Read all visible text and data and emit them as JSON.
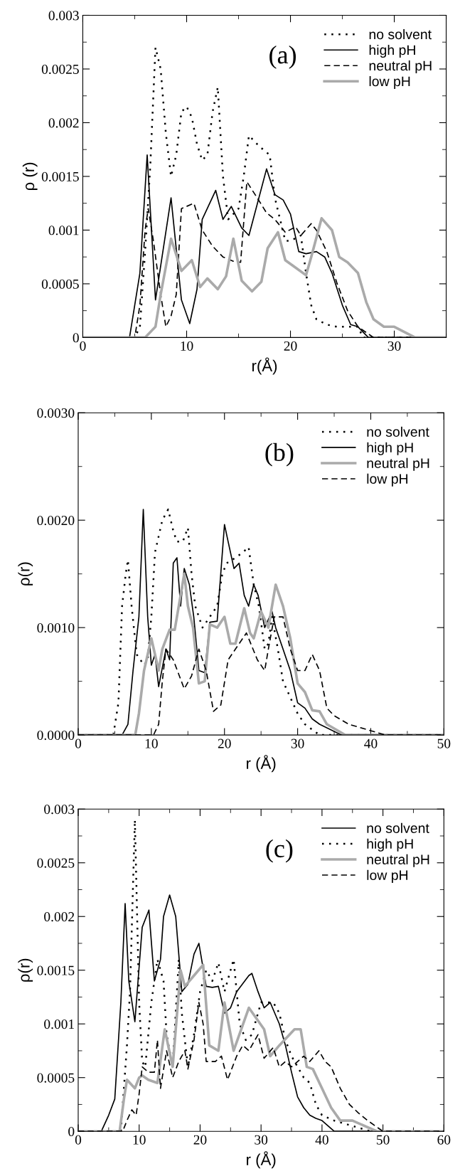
{
  "chart_data": [
    {
      "type": "line",
      "annotations": [
        "(a)"
      ],
      "xlabel": "r(Å)",
      "ylabel": "ρ (r)",
      "xlim": [
        0,
        35
      ],
      "ylim": [
        0,
        0.003
      ],
      "xticks": [
        0,
        10,
        20,
        30
      ],
      "yticks": [
        0,
        0.0005,
        0.001,
        0.0015,
        0.002,
        0.0025,
        0.003
      ],
      "legend": "top right",
      "grid": false,
      "marker": "none",
      "series": [
        {
          "name": "no solvent",
          "color": "#000000",
          "line_style": "dotted",
          "x": [
            0,
            5,
            5.5,
            6,
            6.5,
            7,
            7.5,
            8,
            8.5,
            9,
            9.5,
            10,
            10.5,
            11,
            11.5,
            12,
            12.5,
            13,
            13.5,
            14,
            15,
            15.5,
            16,
            17,
            18,
            18.5,
            19,
            19.5,
            20,
            21,
            21.5,
            22,
            22.5,
            23.5,
            24.5,
            25.5,
            26.5,
            27,
            28,
            35
          ],
          "values": [
            0,
            0,
            0.0001,
            0.0008,
            0.0016,
            0.0027,
            0.0025,
            0.0019,
            0.0015,
            0.0017,
            0.0021,
            0.00215,
            0.00205,
            0.0018,
            0.00165,
            0.0017,
            0.0021,
            0.00233,
            0.0015,
            0.0011,
            0.0012,
            0.0015,
            0.00188,
            0.00178,
            0.0017,
            0.0013,
            0.0011,
            0.0009,
            0.0009,
            0.00095,
            0.0006,
            0.0003,
            0.00017,
            0.00012,
            0.0001,
            0.0001,
            0.0001,
            0,
            0,
            0
          ]
        },
        {
          "name": "high pH",
          "color": "#000000",
          "line_style": "solid",
          "x": [
            0,
            4.5,
            5,
            5.5,
            6.2,
            7,
            8.5,
            9.5,
            10.3,
            11,
            11.5,
            12.8,
            13.5,
            14.3,
            15.3,
            16,
            17.7,
            18.5,
            19.3,
            20,
            20.8,
            21.5,
            22.5,
            23.3,
            24,
            25,
            25.8,
            26.5,
            27.5,
            35
          ],
          "values": [
            0,
            0,
            0.0003,
            0.0006,
            0.0017,
            0.00035,
            0.0013,
            0.00035,
            0.00013,
            0.00045,
            0.0011,
            0.00137,
            0.0011,
            0.00122,
            0.00102,
            0.00095,
            0.00157,
            0.00133,
            0.00128,
            0.00115,
            0.0008,
            0.00078,
            0.0008,
            0.00075,
            0.0006,
            0.0003,
            0.00012,
            0.0001,
            0,
            0
          ]
        },
        {
          "name": "neutral pH",
          "color": "#000000",
          "line_style": "dashed",
          "x": [
            0,
            5,
            5.5,
            6,
            6.3,
            6.8,
            7.5,
            8,
            8.5,
            9,
            9.5,
            10.7,
            11.5,
            12.5,
            13.5,
            14.5,
            15.2,
            15.8,
            16.8,
            17.7,
            18.5,
            19.5,
            20.5,
            21,
            22,
            22.5,
            23.5,
            24.5,
            25.5,
            26.5,
            28,
            30,
            35
          ],
          "values": [
            0,
            0,
            0.0003,
            0.001,
            0.0012,
            0.0009,
            0.0004,
            0.0001,
            0.0002,
            0.0004,
            0.0012,
            0.00125,
            0.001,
            0.00085,
            0.00075,
            0.00071,
            0.0007,
            0.00145,
            0.0013,
            0.00116,
            0.0011,
            0.00098,
            0.00103,
            0.00095,
            0.00106,
            0.001,
            0.0008,
            0.0005,
            0.00025,
            0.0001,
            0,
            0,
            0
          ]
        },
        {
          "name": "low pH",
          "color": "#aaaaaa",
          "line_style": "solid",
          "x": [
            0,
            6,
            7,
            7.5,
            8.5,
            9.5,
            10.5,
            11.3,
            12,
            13,
            13.8,
            14.5,
            15.3,
            16.3,
            17.2,
            17.8,
            18.8,
            19.5,
            20.5,
            21.5,
            22,
            23,
            24,
            24.7,
            25.5,
            26.5,
            27.3,
            28,
            29,
            30,
            32,
            35
          ],
          "values": [
            0,
            0,
            0.0001,
            0.0004,
            0.00092,
            0.00062,
            0.00072,
            0.00047,
            0.00055,
            0.00045,
            0.00057,
            0.00092,
            0.00053,
            0.00043,
            0.00052,
            0.00083,
            0.00098,
            0.00072,
            0.00065,
            0.00058,
            0.00075,
            0.00111,
            0.001,
            0.00075,
            0.0007,
            0.0006,
            0.00033,
            0.00017,
            0.0001,
            0.0001,
            0,
            0
          ]
        }
      ]
    },
    {
      "type": "line",
      "annotations": [
        "(b)"
      ],
      "xlabel": "r (Å)",
      "ylabel": "ρ(r)",
      "xlim": [
        0,
        50
      ],
      "ylim": [
        0,
        0.003
      ],
      "xticks": [
        0,
        10,
        20,
        30,
        40,
        50
      ],
      "yticks": [
        {
          "value": 0,
          "label": "0.0000"
        },
        {
          "value": 0.001,
          "label": "0.0010"
        },
        {
          "value": 0.002,
          "label": "0.0020"
        },
        {
          "value": 0.003,
          "label": "0.0030"
        }
      ],
      "legend": "top right",
      "grid": false,
      "marker": "none",
      "series": [
        {
          "name": "no solvent",
          "color": "#000000",
          "line_style": "dotted",
          "x": [
            0,
            4.8,
            5.5,
            6,
            6.5,
            6.8,
            7.3,
            8,
            9,
            9.5,
            10,
            10.5,
            11.5,
            12.3,
            13,
            13.5,
            14.3,
            15,
            15.5,
            16,
            17,
            18,
            19,
            19.7,
            20.3,
            21.5,
            22.5,
            23.3,
            24,
            24.7,
            25.5,
            26,
            26.5,
            27.3,
            28,
            29,
            30,
            31,
            33,
            50
          ],
          "values": [
            0,
            0,
            0.0003,
            0.0012,
            0.0015,
            0.00163,
            0.0012,
            0.00075,
            0.00065,
            0.0007,
            0.0011,
            0.0017,
            0.002,
            0.0021,
            0.0019,
            0.0018,
            0.0018,
            0.00193,
            0.0015,
            0.0012,
            0.001,
            0.0011,
            0.0012,
            0.0015,
            0.0016,
            0.00165,
            0.0017,
            0.00175,
            0.0014,
            0.0012,
            0.0008,
            0.00085,
            0.0011,
            0.0008,
            0.0005,
            0.00035,
            0.0002,
            0.0001,
            0,
            0
          ]
        },
        {
          "name": "high pH",
          "color": "#000000",
          "line_style": "solid",
          "x": [
            0,
            6,
            6.8,
            7.5,
            8.3,
            8.9,
            9.5,
            10,
            10.5,
            11,
            12,
            12.5,
            13,
            13.5,
            14,
            14.5,
            15.2,
            15.8,
            16.5,
            17.3,
            18,
            19,
            20,
            20.5,
            21.3,
            22,
            22.7,
            23.3,
            24,
            24.6,
            25.5,
            26.5,
            27,
            28,
            29,
            30,
            31,
            32,
            33,
            36,
            50
          ],
          "values": [
            0,
            0,
            0.0001,
            0.0006,
            0.0011,
            0.0021,
            0.0011,
            0.00065,
            0.00075,
            0.00045,
            0.0008,
            0.0007,
            0.0016,
            0.00165,
            0.0012,
            0.00155,
            0.0014,
            0.0011,
            0.0006,
            0.00058,
            0.00105,
            0.00106,
            0.00196,
            0.0018,
            0.00155,
            0.0016,
            0.0013,
            0.0012,
            0.0014,
            0.0013,
            0.001,
            0.00115,
            0.001,
            0.0008,
            0.0006,
            0.0003,
            0.00025,
            0.00015,
            0.0001,
            0,
            0
          ]
        },
        {
          "name": "neutral pH",
          "color": "#aaaaaa",
          "line_style": "solid",
          "x": [
            0,
            7.8,
            8.3,
            9,
            10,
            11,
            11.5,
            12.5,
            13.2,
            14.5,
            15,
            15.7,
            16.5,
            17.3,
            18,
            19,
            20,
            20.8,
            21.5,
            22.7,
            23.5,
            24,
            25,
            26,
            27,
            28,
            29,
            30,
            31,
            32,
            33,
            34,
            36.5,
            50
          ],
          "values": [
            0,
            0,
            0.0002,
            0.0006,
            0.0009,
            0.0006,
            0.0008,
            0.00098,
            0.00098,
            0.0015,
            0.0012,
            0.001,
            0.00048,
            0.0005,
            0.00103,
            0.001,
            0.0011,
            0.00085,
            0.00085,
            0.00118,
            0.00095,
            0.0009,
            0.00115,
            0.001,
            0.0014,
            0.0012,
            0.0009,
            0.00048,
            0.0004,
            0.00023,
            0.00022,
            0.0001,
            0,
            0
          ]
        },
        {
          "name": "low pH",
          "color": "#000000",
          "line_style": "dashed",
          "x": [
            0,
            10.3,
            11,
            11.5,
            12,
            13,
            14.5,
            15.5,
            16.5,
            17.5,
            18.5,
            19.5,
            20.5,
            22,
            23,
            24.5,
            25.5,
            26,
            26.8,
            28,
            29,
            30,
            31,
            32,
            33,
            34,
            35,
            37,
            42,
            50
          ],
          "values": [
            0,
            0,
            0.0001,
            0.0005,
            0.0008,
            0.0007,
            0.00043,
            0.00055,
            0.0008,
            0.0006,
            0.00022,
            0.00028,
            0.0007,
            0.00085,
            0.00095,
            0.0007,
            0.0006,
            0.0008,
            0.0011,
            0.0011,
            0.0008,
            0.0006,
            0.0006,
            0.00075,
            0.0006,
            0.00025,
            0.00018,
            0.0001,
            0,
            0
          ]
        }
      ]
    },
    {
      "type": "line",
      "annotations": [
        "(c)"
      ],
      "xlabel": "r (Å)",
      "ylabel": "ρ(r)",
      "xlim": [
        0,
        60
      ],
      "ylim": [
        0,
        0.003
      ],
      "xticks": [
        0,
        10,
        20,
        30,
        40,
        50,
        60
      ],
      "yticks": [
        0,
        0.0005,
        0.001,
        0.0015,
        0.002,
        0.0025,
        0.003
      ],
      "legend": "top right",
      "grid": false,
      "marker": "none",
      "series": [
        {
          "name": "no solvent",
          "color": "#000000",
          "line_style": "solid",
          "x": [
            0,
            3.8,
            5,
            6,
            7,
            7.7,
            8.3,
            9.3,
            10.5,
            11.6,
            12.5,
            13.5,
            14,
            15,
            16,
            17,
            18,
            19,
            19.8,
            21,
            22,
            23,
            24,
            25,
            26,
            28,
            28.5,
            29.5,
            30.5,
            31.5,
            33,
            34,
            35,
            36,
            37,
            38,
            39,
            40,
            42,
            44,
            60
          ],
          "values": [
            0,
            0,
            0.00015,
            0.0003,
            0.0012,
            0.00212,
            0.0014,
            0.00102,
            0.0019,
            0.00206,
            0.0014,
            0.0016,
            0.002,
            0.0022,
            0.002,
            0.0013,
            0.00137,
            0.00165,
            0.00175,
            0.00135,
            0.00134,
            0.00135,
            0.0011,
            0.00115,
            0.0013,
            0.00145,
            0.00147,
            0.0013,
            0.00115,
            0.0012,
            0.001,
            0.0008,
            0.00055,
            0.00032,
            0.00022,
            0.00015,
            0.00012,
            0.0001,
            0,
            0,
            0
          ]
        },
        {
          "name": "high pH",
          "color": "#000000",
          "line_style": "dotted",
          "x": [
            0,
            7,
            8,
            8.5,
            9.3,
            10,
            10.5,
            11,
            12,
            13,
            14,
            14.5,
            15.5,
            16.5,
            17,
            18,
            19,
            20,
            21,
            22,
            23,
            24,
            25,
            25.5,
            26.5,
            27.5,
            28.5,
            30,
            31,
            32,
            33,
            34,
            35,
            36,
            37,
            38,
            39,
            40,
            42,
            48,
            60
          ],
          "values": [
            0,
            0,
            0.0008,
            0.0013,
            0.0029,
            0.0012,
            0.00065,
            0.0006,
            0.0012,
            0.0016,
            0.0014,
            0.0009,
            0.0006,
            0.0016,
            0.0011,
            0.0006,
            0.0009,
            0.0013,
            0.0015,
            0.0014,
            0.00157,
            0.0013,
            0.0015,
            0.0016,
            0.001,
            0.00085,
            0.0009,
            0.0012,
            0.0012,
            0.0012,
            0.0011,
            0.00085,
            0.0007,
            0.0006,
            0.0005,
            0.00045,
            0.00025,
            0.00015,
            0.0001,
            0,
            0
          ]
        },
        {
          "name": "neutral pH",
          "color": "#aaaaaa",
          "line_style": "solid",
          "x": [
            0,
            6.8,
            7.5,
            8,
            9.3,
            10,
            10.5,
            11.5,
            13,
            14.2,
            15.5,
            16.8,
            17.5,
            19,
            20.5,
            21.5,
            23,
            24,
            25.5,
            28,
            30.5,
            31.5,
            33,
            35.5,
            36.5,
            37.5,
            38.5,
            40,
            41.5,
            43,
            45,
            49,
            60
          ],
          "values": [
            0,
            0,
            0.0003,
            0.00048,
            0.0004,
            0.0005,
            0.00052,
            0.00048,
            0.00045,
            0.00095,
            0.0006,
            0.0015,
            0.00135,
            0.00145,
            0.00155,
            0.0008,
            0.00075,
            0.0012,
            0.00075,
            0.00115,
            0.00095,
            0.0007,
            0.0008,
            0.00095,
            0.00095,
            0.0006,
            0.00058,
            0.0004,
            0.00022,
            0.0001,
            0.0001,
            0,
            0
          ]
        },
        {
          "name": "low pH",
          "color": "#000000",
          "line_style": "dashed",
          "x": [
            0,
            7.3,
            8,
            8.8,
            9.5,
            10,
            10.5,
            11.5,
            12.5,
            13,
            13.5,
            14.5,
            15.5,
            16.5,
            17.5,
            18,
            19,
            19.8,
            20.5,
            21,
            22.5,
            23.5,
            24.5,
            26,
            27,
            28,
            29.5,
            30.5,
            32,
            33,
            34,
            35,
            37,
            38,
            39.5,
            40.5,
            41.5,
            43,
            44.5,
            46,
            47.5,
            50,
            60
          ],
          "values": [
            0,
            0,
            0.0001,
            0.0002,
            0.00015,
            0.00035,
            0.0006,
            0.00055,
            0.00055,
            0.00085,
            0.0004,
            0.00075,
            0.0005,
            0.00065,
            0.00075,
            0.00058,
            0.00085,
            0.0012,
            0.001,
            0.00065,
            0.00065,
            0.0007,
            0.00048,
            0.0007,
            0.0008,
            0.00075,
            0.0009,
            0.00068,
            0.00078,
            0.0006,
            0.00065,
            0.0006,
            0.0007,
            0.00065,
            0.00075,
            0.00065,
            0.0006,
            0.0004,
            0.00025,
            0.00017,
            0.0001,
            0,
            0
          ]
        }
      ]
    }
  ]
}
